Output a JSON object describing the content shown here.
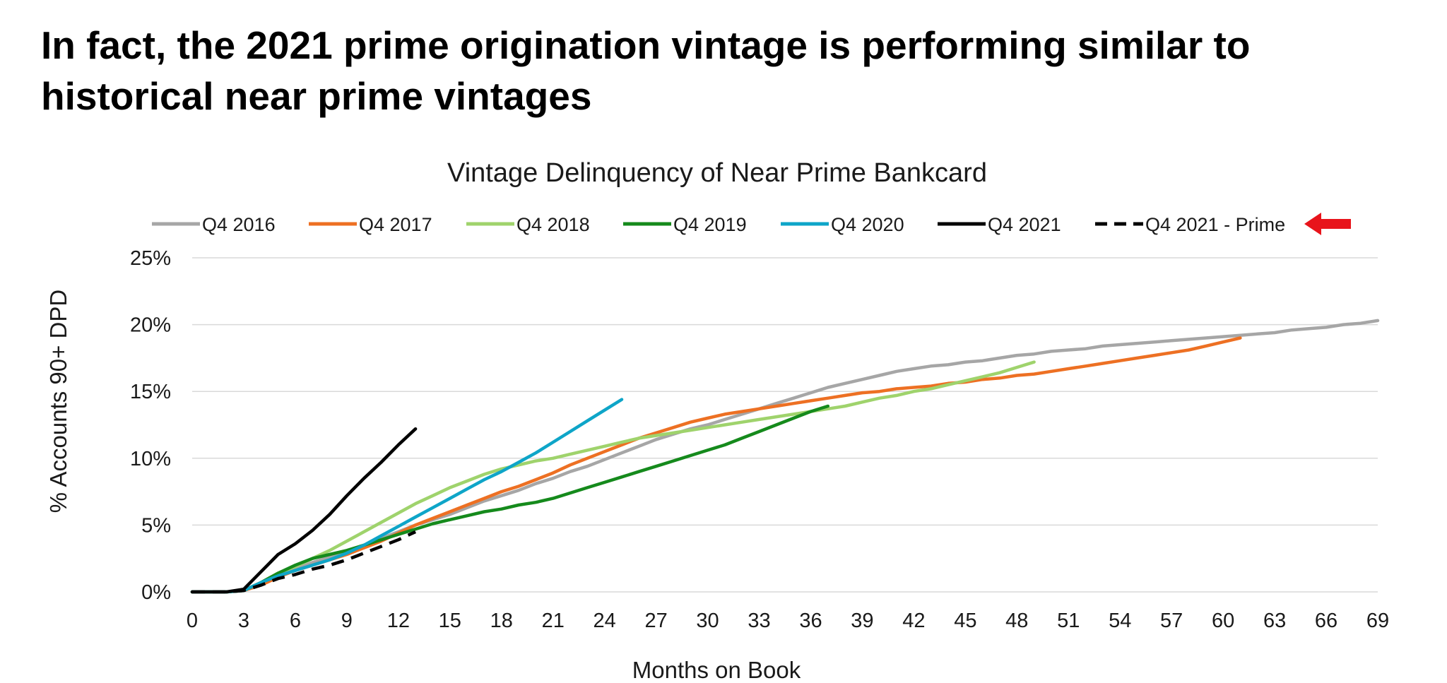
{
  "slide": {
    "headline": "In fact, the 2021 prime origination vintage is performing similar to historical near prime vintages"
  },
  "chart_data": {
    "type": "line",
    "title": "Vintage Delinquency of Near Prime Bankcard",
    "xlabel": "Months on Book",
    "ylabel": "% Accounts 90+ DPD",
    "xlim": [
      0,
      69
    ],
    "ylim": [
      0,
      25
    ],
    "x_ticks": [
      0,
      3,
      6,
      9,
      12,
      15,
      18,
      21,
      24,
      27,
      30,
      33,
      36,
      39,
      42,
      45,
      48,
      51,
      54,
      57,
      60,
      63,
      66,
      69
    ],
    "x_tick_labels": [
      "0",
      "3",
      "6",
      "9",
      "12",
      "15",
      "18",
      "21",
      "24",
      "27",
      "30",
      "33",
      "36",
      "39",
      "42",
      "45",
      "48",
      "51",
      "54",
      "57",
      "60",
      "63",
      "66",
      "69"
    ],
    "y_ticks": [
      0,
      5,
      10,
      15,
      20,
      25
    ],
    "y_tick_labels": [
      "0%",
      "5%",
      "10%",
      "15%",
      "20%",
      "25%"
    ],
    "grid": "horizontal",
    "legend_position": "top",
    "legend_marker": {
      "name": "red-arrow-icon",
      "color": "#e8141b",
      "points_to": "Q4 2021 - Prime"
    },
    "series": [
      {
        "name": "Q4 2016",
        "color": "#a6a6a6",
        "dash": false,
        "points": [
          [
            0,
            0
          ],
          [
            1,
            0
          ],
          [
            2,
            0
          ],
          [
            3,
            0.1
          ],
          [
            4,
            0.6
          ],
          [
            5,
            1.2
          ],
          [
            6,
            1.7
          ],
          [
            7,
            2.2
          ],
          [
            8,
            2.6
          ],
          [
            9,
            3.0
          ],
          [
            10,
            3.5
          ],
          [
            11,
            4.0
          ],
          [
            12,
            4.5
          ],
          [
            13,
            5.0
          ],
          [
            14,
            5.4
          ],
          [
            15,
            5.8
          ],
          [
            16,
            6.3
          ],
          [
            17,
            6.8
          ],
          [
            18,
            7.2
          ],
          [
            19,
            7.6
          ],
          [
            20,
            8.1
          ],
          [
            21,
            8.5
          ],
          [
            22,
            9.0
          ],
          [
            23,
            9.4
          ],
          [
            24,
            9.9
          ],
          [
            25,
            10.4
          ],
          [
            26,
            10.9
          ],
          [
            27,
            11.4
          ],
          [
            28,
            11.8
          ],
          [
            29,
            12.2
          ],
          [
            30,
            12.5
          ],
          [
            31,
            12.9
          ],
          [
            32,
            13.3
          ],
          [
            33,
            13.7
          ],
          [
            34,
            14.1
          ],
          [
            35,
            14.5
          ],
          [
            36,
            14.9
          ],
          [
            37,
            15.3
          ],
          [
            38,
            15.6
          ],
          [
            39,
            15.9
          ],
          [
            40,
            16.2
          ],
          [
            41,
            16.5
          ],
          [
            42,
            16.7
          ],
          [
            43,
            16.9
          ],
          [
            44,
            17.0
          ],
          [
            45,
            17.2
          ],
          [
            46,
            17.3
          ],
          [
            47,
            17.5
          ],
          [
            48,
            17.7
          ],
          [
            49,
            17.8
          ],
          [
            50,
            18.0
          ],
          [
            51,
            18.1
          ],
          [
            52,
            18.2
          ],
          [
            53,
            18.4
          ],
          [
            54,
            18.5
          ],
          [
            55,
            18.6
          ],
          [
            56,
            18.7
          ],
          [
            57,
            18.8
          ],
          [
            58,
            18.9
          ],
          [
            59,
            19.0
          ],
          [
            60,
            19.1
          ],
          [
            61,
            19.2
          ],
          [
            62,
            19.3
          ],
          [
            63,
            19.4
          ],
          [
            64,
            19.6
          ],
          [
            65,
            19.7
          ],
          [
            66,
            19.8
          ],
          [
            67,
            20.0
          ],
          [
            68,
            20.1
          ],
          [
            69,
            20.3
          ]
        ]
      },
      {
        "name": "Q4 2017",
        "color": "#ed7023",
        "dash": false,
        "points": [
          [
            0,
            0
          ],
          [
            1,
            0
          ],
          [
            2,
            0
          ],
          [
            3,
            0.1
          ],
          [
            4,
            0.5
          ],
          [
            5,
            1.1
          ],
          [
            6,
            1.6
          ],
          [
            7,
            2.0
          ],
          [
            8,
            2.4
          ],
          [
            9,
            2.8
          ],
          [
            10,
            3.3
          ],
          [
            11,
            3.8
          ],
          [
            12,
            4.4
          ],
          [
            13,
            5.0
          ],
          [
            14,
            5.5
          ],
          [
            15,
            6.0
          ],
          [
            16,
            6.5
          ],
          [
            17,
            7.0
          ],
          [
            18,
            7.5
          ],
          [
            19,
            7.9
          ],
          [
            20,
            8.4
          ],
          [
            21,
            8.9
          ],
          [
            22,
            9.5
          ],
          [
            23,
            10.0
          ],
          [
            24,
            10.5
          ],
          [
            25,
            11.0
          ],
          [
            26,
            11.5
          ],
          [
            27,
            11.9
          ],
          [
            28,
            12.3
          ],
          [
            29,
            12.7
          ],
          [
            30,
            13.0
          ],
          [
            31,
            13.3
          ],
          [
            32,
            13.5
          ],
          [
            33,
            13.7
          ],
          [
            34,
            13.9
          ],
          [
            35,
            14.1
          ],
          [
            36,
            14.3
          ],
          [
            37,
            14.5
          ],
          [
            38,
            14.7
          ],
          [
            39,
            14.9
          ],
          [
            40,
            15.0
          ],
          [
            41,
            15.2
          ],
          [
            42,
            15.3
          ],
          [
            43,
            15.4
          ],
          [
            44,
            15.6
          ],
          [
            45,
            15.7
          ],
          [
            46,
            15.9
          ],
          [
            47,
            16.0
          ],
          [
            48,
            16.2
          ],
          [
            49,
            16.3
          ],
          [
            50,
            16.5
          ],
          [
            51,
            16.7
          ],
          [
            52,
            16.9
          ],
          [
            53,
            17.1
          ],
          [
            54,
            17.3
          ],
          [
            55,
            17.5
          ],
          [
            56,
            17.7
          ],
          [
            57,
            17.9
          ],
          [
            58,
            18.1
          ],
          [
            59,
            18.4
          ],
          [
            60,
            18.7
          ],
          [
            61,
            19.0
          ]
        ]
      },
      {
        "name": "Q4 2018",
        "color": "#9fd36c",
        "dash": false,
        "points": [
          [
            0,
            0
          ],
          [
            1,
            0
          ],
          [
            2,
            0
          ],
          [
            3,
            0.1
          ],
          [
            4,
            0.7
          ],
          [
            5,
            1.4
          ],
          [
            6,
            1.9
          ],
          [
            7,
            2.5
          ],
          [
            8,
            3.1
          ],
          [
            9,
            3.8
          ],
          [
            10,
            4.5
          ],
          [
            11,
            5.2
          ],
          [
            12,
            5.9
          ],
          [
            13,
            6.6
          ],
          [
            14,
            7.2
          ],
          [
            15,
            7.8
          ],
          [
            16,
            8.3
          ],
          [
            17,
            8.8
          ],
          [
            18,
            9.2
          ],
          [
            19,
            9.5
          ],
          [
            20,
            9.8
          ],
          [
            21,
            10.0
          ],
          [
            22,
            10.3
          ],
          [
            23,
            10.6
          ],
          [
            24,
            10.9
          ],
          [
            25,
            11.2
          ],
          [
            26,
            11.5
          ],
          [
            27,
            11.7
          ],
          [
            28,
            11.9
          ],
          [
            29,
            12.1
          ],
          [
            30,
            12.3
          ],
          [
            31,
            12.5
          ],
          [
            32,
            12.7
          ],
          [
            33,
            12.9
          ],
          [
            34,
            13.1
          ],
          [
            35,
            13.3
          ],
          [
            36,
            13.5
          ],
          [
            37,
            13.7
          ],
          [
            38,
            13.9
          ],
          [
            39,
            14.2
          ],
          [
            40,
            14.5
          ],
          [
            41,
            14.7
          ],
          [
            42,
            15.0
          ],
          [
            43,
            15.2
          ],
          [
            44,
            15.5
          ],
          [
            45,
            15.8
          ],
          [
            46,
            16.1
          ],
          [
            47,
            16.4
          ],
          [
            48,
            16.8
          ],
          [
            49,
            17.2
          ]
        ]
      },
      {
        "name": "Q4 2019",
        "color": "#158a1c",
        "dash": false,
        "points": [
          [
            0,
            0
          ],
          [
            1,
            0
          ],
          [
            2,
            0
          ],
          [
            3,
            0.1
          ],
          [
            4,
            0.7
          ],
          [
            5,
            1.4
          ],
          [
            6,
            2.0
          ],
          [
            7,
            2.5
          ],
          [
            8,
            2.8
          ],
          [
            9,
            3.1
          ],
          [
            10,
            3.5
          ],
          [
            11,
            3.9
          ],
          [
            12,
            4.3
          ],
          [
            13,
            4.7
          ],
          [
            14,
            5.1
          ],
          [
            15,
            5.4
          ],
          [
            16,
            5.7
          ],
          [
            17,
            6.0
          ],
          [
            18,
            6.2
          ],
          [
            19,
            6.5
          ],
          [
            20,
            6.7
          ],
          [
            21,
            7.0
          ],
          [
            22,
            7.4
          ],
          [
            23,
            7.8
          ],
          [
            24,
            8.2
          ],
          [
            25,
            8.6
          ],
          [
            26,
            9.0
          ],
          [
            27,
            9.4
          ],
          [
            28,
            9.8
          ],
          [
            29,
            10.2
          ],
          [
            30,
            10.6
          ],
          [
            31,
            11.0
          ],
          [
            32,
            11.5
          ],
          [
            33,
            12.0
          ],
          [
            34,
            12.5
          ],
          [
            35,
            13.0
          ],
          [
            36,
            13.5
          ],
          [
            37,
            13.9
          ]
        ]
      },
      {
        "name": "Q4 2020",
        "color": "#0ea5c8",
        "dash": false,
        "points": [
          [
            0,
            0
          ],
          [
            1,
            0
          ],
          [
            2,
            0
          ],
          [
            3,
            0.1
          ],
          [
            4,
            0.7
          ],
          [
            5,
            1.2
          ],
          [
            6,
            1.6
          ],
          [
            7,
            2.0
          ],
          [
            8,
            2.4
          ],
          [
            9,
            2.9
          ],
          [
            10,
            3.5
          ],
          [
            11,
            4.2
          ],
          [
            12,
            4.9
          ],
          [
            13,
            5.6
          ],
          [
            14,
            6.3
          ],
          [
            15,
            7.0
          ],
          [
            16,
            7.7
          ],
          [
            17,
            8.4
          ],
          [
            18,
            9.0
          ],
          [
            19,
            9.7
          ],
          [
            20,
            10.4
          ],
          [
            21,
            11.2
          ],
          [
            22,
            12.0
          ],
          [
            23,
            12.8
          ],
          [
            24,
            13.6
          ],
          [
            25,
            14.4
          ]
        ]
      },
      {
        "name": "Q4 2021",
        "color": "#000000",
        "dash": false,
        "points": [
          [
            0,
            0
          ],
          [
            1,
            0
          ],
          [
            2,
            0
          ],
          [
            3,
            0.2
          ],
          [
            4,
            1.5
          ],
          [
            5,
            2.8
          ],
          [
            6,
            3.6
          ],
          [
            7,
            4.6
          ],
          [
            8,
            5.8
          ],
          [
            9,
            7.2
          ],
          [
            10,
            8.5
          ],
          [
            11,
            9.7
          ],
          [
            12,
            11.0
          ],
          [
            13,
            12.2
          ]
        ]
      },
      {
        "name": "Q4 2021 - Prime",
        "color": "#000000",
        "dash": true,
        "points": [
          [
            0,
            0
          ],
          [
            1,
            0
          ],
          [
            2,
            0
          ],
          [
            3,
            0.1
          ],
          [
            4,
            0.5
          ],
          [
            5,
            1.0
          ],
          [
            6,
            1.3
          ],
          [
            7,
            1.7
          ],
          [
            8,
            2.0
          ],
          [
            9,
            2.4
          ],
          [
            10,
            2.9
          ],
          [
            11,
            3.4
          ],
          [
            12,
            3.9
          ],
          [
            13,
            4.5
          ]
        ]
      }
    ]
  }
}
